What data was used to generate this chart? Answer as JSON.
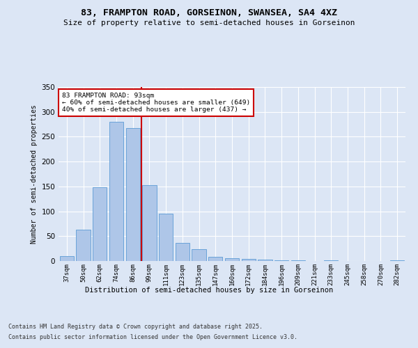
{
  "title1": "83, FRAMPTON ROAD, GORSEINON, SWANSEA, SA4 4XZ",
  "title2": "Size of property relative to semi-detached houses in Gorseinon",
  "xlabel": "Distribution of semi-detached houses by size in Gorseinon",
  "ylabel": "Number of semi-detached properties",
  "categories": [
    "37sqm",
    "50sqm",
    "62sqm",
    "74sqm",
    "86sqm",
    "99sqm",
    "111sqm",
    "123sqm",
    "135sqm",
    "147sqm",
    "160sqm",
    "172sqm",
    "184sqm",
    "196sqm",
    "209sqm",
    "221sqm",
    "233sqm",
    "245sqm",
    "258sqm",
    "270sqm",
    "282sqm"
  ],
  "values": [
    10,
    63,
    148,
    280,
    268,
    152,
    95,
    36,
    24,
    9,
    5,
    4,
    3,
    2,
    1,
    0,
    1,
    0,
    0,
    0,
    1
  ],
  "bar_color": "#aec6e8",
  "bar_edge_color": "#5b9bd5",
  "vline_x": 4.5,
  "vline_color": "#cc0000",
  "annotation_title": "83 FRAMPTON ROAD: 93sqm",
  "annotation_line1": "← 60% of semi-detached houses are smaller (649)",
  "annotation_line2": "40% of semi-detached houses are larger (437) →",
  "annotation_box_color": "#cc0000",
  "footer1": "Contains HM Land Registry data © Crown copyright and database right 2025.",
  "footer2": "Contains public sector information licensed under the Open Government Licence v3.0.",
  "bg_color": "#dce6f5",
  "plot_bg_color": "#dce6f5",
  "ylim": [
    0,
    350
  ],
  "yticks": [
    0,
    50,
    100,
    150,
    200,
    250,
    300,
    350
  ]
}
